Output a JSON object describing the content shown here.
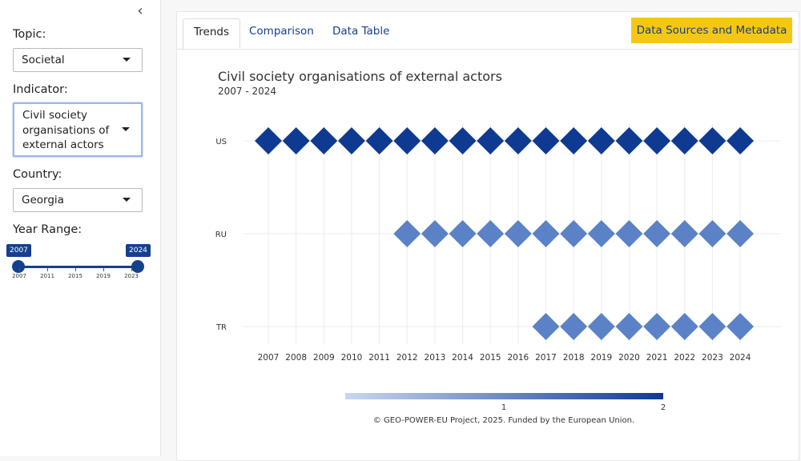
{
  "sidebar": {
    "collapse_icon": "chevron-left-icon",
    "topic": {
      "label": "Topic:",
      "value": "Societal"
    },
    "indicator": {
      "label": "Indicator:",
      "value_lines": [
        "Civil society",
        "organisations of",
        "external actors"
      ]
    },
    "country": {
      "label": "Country:",
      "value": "Georgia"
    },
    "year_range": {
      "label": "Year Range:",
      "from": "2007",
      "to": "2024",
      "ticks": [
        "2007",
        "2011",
        "2015",
        "2019",
        "2023"
      ]
    }
  },
  "tabs": [
    {
      "label": "Trends",
      "active": true
    },
    {
      "label": "Comparison",
      "active": false
    },
    {
      "label": "Data Table",
      "active": false
    }
  ],
  "metadata_button": {
    "label": "Data Sources and Metadata",
    "color": "#f5c713"
  },
  "colors": {
    "brand": "#153f8f",
    "light": "#5b82c6",
    "scale_low": "#c9d8f1",
    "scale_high": "#0f3a92"
  },
  "chart": {
    "title": "Civil society organisations of external actors",
    "subtitle": "2007 - 2024",
    "footer": "© GEO-POWER-EU Project, 2025. Funded by the European Union."
  },
  "chart_data": {
    "type": "heatmap",
    "x": [
      "2007",
      "2008",
      "2009",
      "2010",
      "2011",
      "2012",
      "2013",
      "2014",
      "2015",
      "2016",
      "2017",
      "2018",
      "2019",
      "2020",
      "2021",
      "2022",
      "2023",
      "2024"
    ],
    "y": [
      "US",
      "RU",
      "TR"
    ],
    "series": [
      {
        "name": "US",
        "values": [
          2,
          2,
          2,
          2,
          2,
          2,
          2,
          2,
          2,
          2,
          2,
          2,
          2,
          2,
          2,
          2,
          2,
          2
        ]
      },
      {
        "name": "RU",
        "values": [
          null,
          null,
          null,
          null,
          null,
          1,
          1,
          1,
          1,
          1,
          1,
          1,
          1,
          1,
          1,
          1,
          1,
          1
        ]
      },
      {
        "name": "TR",
        "values": [
          null,
          null,
          null,
          null,
          null,
          null,
          null,
          null,
          null,
          null,
          1,
          1,
          1,
          1,
          1,
          1,
          1,
          1
        ]
      }
    ],
    "color_scale": {
      "min_label": "1",
      "max_label": "2"
    },
    "grid": true
  }
}
